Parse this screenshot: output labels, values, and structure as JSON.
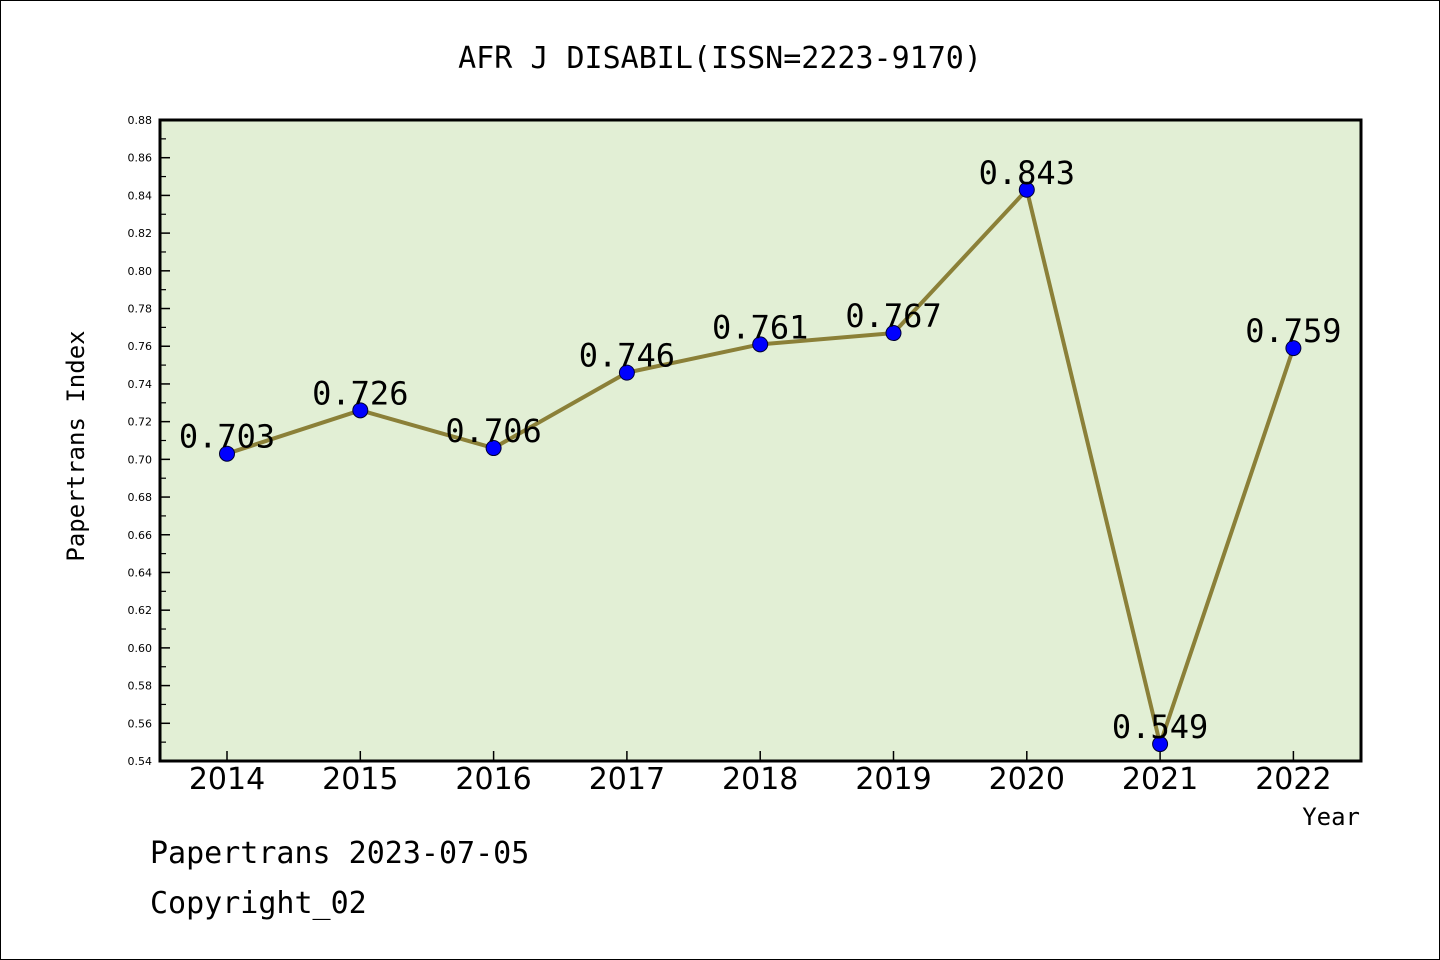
{
  "chart_data": {
    "type": "line",
    "title": "AFR J DISABIL(ISSN=2223-9170)",
    "xlabel": "Year",
    "ylabel": "Papertrans Index",
    "categories": [
      "2014",
      "2015",
      "2016",
      "2017",
      "2018",
      "2019",
      "2020",
      "2021",
      "2022"
    ],
    "series": [
      {
        "values": [
          0.703,
          0.726,
          0.706,
          0.746,
          0.761,
          0.767,
          0.843,
          0.549,
          0.759
        ]
      }
    ],
    "data_labels": [
      "0.703",
      "0.726",
      "0.706",
      "0.746",
      "0.761",
      "0.767",
      "0.843",
      "0.549",
      "0.759"
    ],
    "ylim": [
      0.54,
      0.88
    ],
    "yticks": [
      "0.54",
      "0.56",
      "0.58",
      "0.60",
      "0.62",
      "0.64",
      "0.66",
      "0.68",
      "0.70",
      "0.72",
      "0.74",
      "0.76",
      "0.78",
      "0.80",
      "0.82",
      "0.84",
      "0.86",
      "0.88"
    ],
    "grid": false,
    "legend": "none"
  },
  "footer": {
    "line1": "Papertrans 2023-07-05",
    "line2": "Copyright_02"
  },
  "colors": {
    "plot_background": "#e2efd5",
    "line": "#8b8038",
    "marker": "#0000ff",
    "axis": "#000000"
  }
}
